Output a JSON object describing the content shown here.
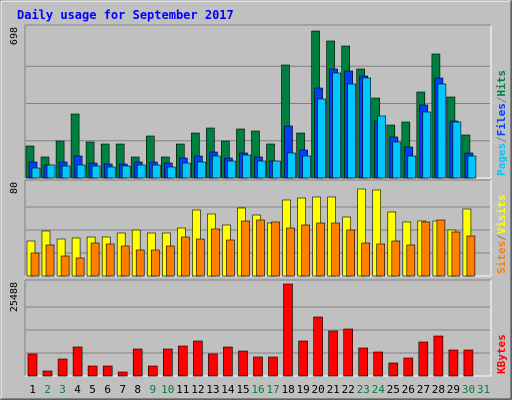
{
  "chart_data": {
    "type": "bar",
    "title": "Daily usage for September 2017",
    "days": [
      1,
      2,
      3,
      4,
      5,
      6,
      7,
      8,
      9,
      10,
      11,
      12,
      13,
      14,
      15,
      16,
      17,
      18,
      19,
      20,
      21,
      22,
      23,
      24,
      25,
      26,
      27,
      28,
      29,
      30,
      31
    ],
    "weekend_days": [
      2,
      3,
      9,
      10,
      16,
      17,
      23,
      24,
      30,
      31
    ],
    "panels": [
      {
        "id": "hits",
        "ymax_label": "698",
        "ymax": 698,
        "legend": [
          {
            "label": "Pages",
            "color": "#00c8ff"
          },
          {
            "label": "/",
            "color": "#808080"
          },
          {
            "label": "Files",
            "color": "#0040ff"
          },
          {
            "label": "/",
            "color": "#808080"
          },
          {
            "label": "Hits",
            "color": "#008040"
          }
        ],
        "series": [
          {
            "name": "Hits",
            "color": "#008040",
            "values": [
              150,
              100,
              175,
              300,
              170,
              160,
              160,
              100,
              195,
              100,
              160,
              210,
              235,
              175,
              230,
              220,
              160,
              530,
              210,
              690,
              640,
              620,
              510,
              375,
              250,
              260,
              405,
              580,
              380,
              200,
              null
            ]
          },
          {
            "name": "Files",
            "color": "#0040ff",
            "values": [
              75,
              60,
              75,
              105,
              70,
              65,
              65,
              75,
              75,
              70,
              95,
              105,
              120,
              95,
              115,
              100,
              80,
              245,
              130,
              420,
              510,
              500,
              480,
              265,
              190,
              145,
              340,
              470,
              265,
              115,
              null
            ]
          },
          {
            "name": "Pages",
            "color": "#00c8ff",
            "values": [
              45,
              60,
              55,
              60,
              55,
              50,
              55,
              60,
              60,
              50,
              70,
              75,
              105,
              80,
              110,
              80,
              80,
              115,
              105,
              370,
              490,
              440,
              470,
              290,
              170,
              105,
              310,
              440,
              260,
              105,
              null
            ]
          }
        ]
      },
      {
        "id": "visits",
        "ymax_label": "80",
        "ymax": 80,
        "legend": [
          {
            "label": "Sites",
            "color": "#ff8000"
          },
          {
            "label": "/",
            "color": "#808080"
          },
          {
            "label": "Visits",
            "color": "#ffff00"
          }
        ],
        "series": [
          {
            "name": "Visits",
            "color": "#ffff00",
            "values": [
              30,
              39,
              32,
              33,
              34,
              34,
              37,
              40,
              37,
              37,
              42,
              57,
              54,
              44,
              59,
              53,
              46,
              66,
              68,
              69,
              69,
              51,
              76,
              75,
              56,
              47,
              48,
              48,
              40,
              58,
              null
            ]
          },
          {
            "name": "Sites",
            "color": "#ff8000",
            "values": [
              20,
              27,
              17,
              16,
              29,
              28,
              26,
              23,
              23,
              26,
              34,
              32,
              41,
              31,
              48,
              49,
              47,
              42,
              44,
              46,
              46,
              40,
              29,
              28,
              30,
              27,
              47,
              49,
              38,
              35,
              null
            ]
          }
        ]
      },
      {
        "id": "kbytes",
        "ymax_label": "25488",
        "ymax": 25488,
        "legend": [
          {
            "label": "KBytes",
            "color": "#ff0000"
          }
        ],
        "series": [
          {
            "name": "KBytes",
            "color": "#ff0000",
            "values": [
              6200,
              1300,
              4800,
              8100,
              2900,
              2900,
              1100,
              7400,
              2800,
              7600,
              8200,
              9600,
              6200,
              8100,
              6900,
              5200,
              5400,
              25488,
              9800,
              16300,
              12400,
              12900,
              7800,
              6700,
              3600,
              5000,
              9400,
              11000,
              7200,
              7200,
              null
            ]
          }
        ]
      }
    ]
  }
}
